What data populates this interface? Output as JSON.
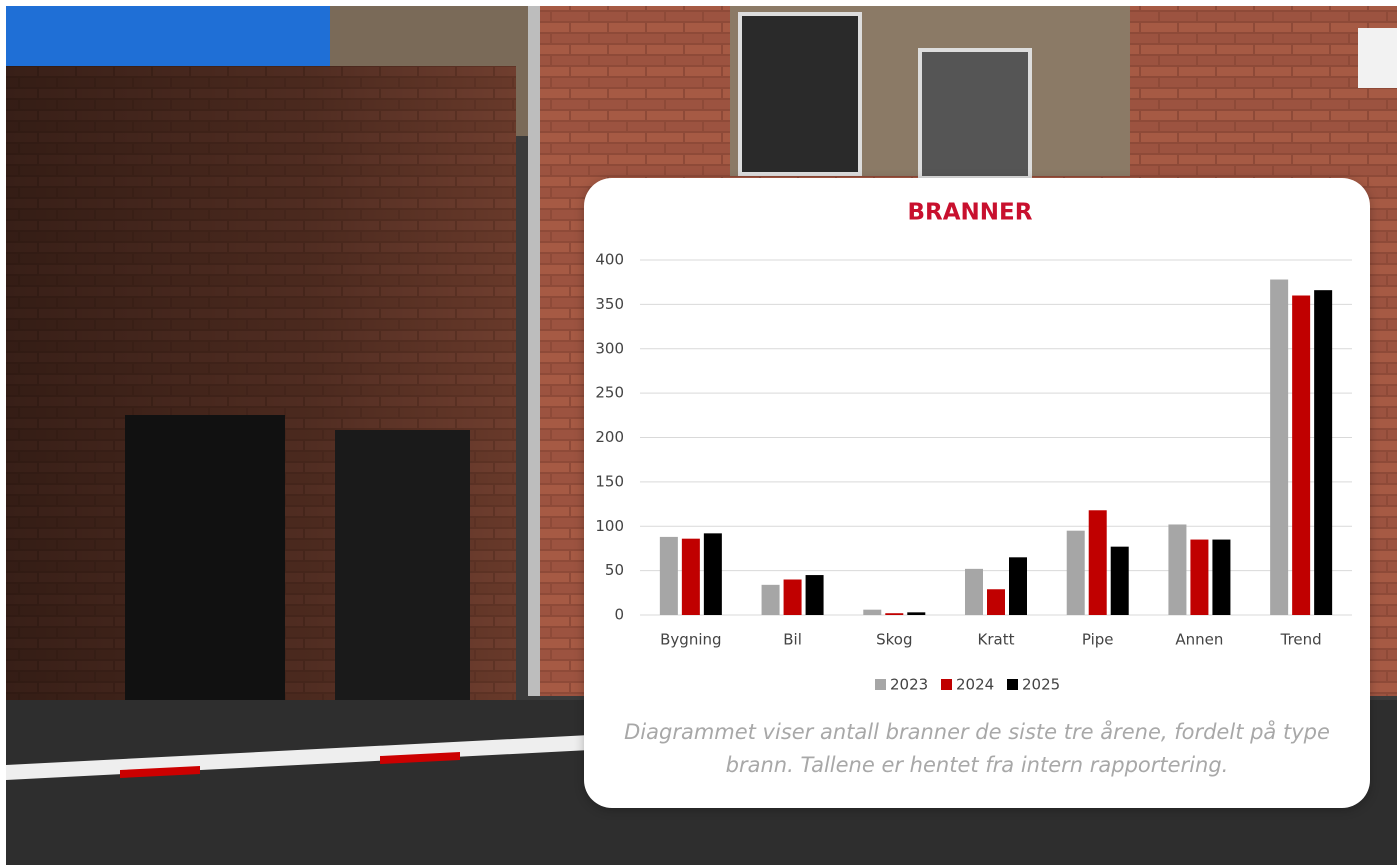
{
  "chart_data": {
    "type": "bar",
    "title": "BRANNER",
    "categories": [
      "Bygning",
      "Bil",
      "Skog",
      "Kratt",
      "Pipe",
      "Annen",
      "Trend"
    ],
    "series": [
      {
        "name": "2023",
        "color": "#a6a6a6",
        "values": [
          88,
          34,
          6,
          52,
          95,
          102,
          378
        ]
      },
      {
        "name": "2024",
        "color": "#c00000",
        "values": [
          86,
          40,
          2,
          29,
          118,
          85,
          360
        ]
      },
      {
        "name": "2025",
        "color": "#000000",
        "values": [
          92,
          45,
          3,
          65,
          77,
          85,
          366
        ]
      }
    ],
    "ylim": [
      0,
      400
    ],
    "yticks": [
      0,
      50,
      100,
      150,
      200,
      250,
      300,
      350,
      400
    ],
    "grid": true,
    "legend": "bottom",
    "caption": "Diagrammet viser antall branner de siste tre årene, fordelt på type brann. Tallene er hentet fra intern rapportering."
  }
}
